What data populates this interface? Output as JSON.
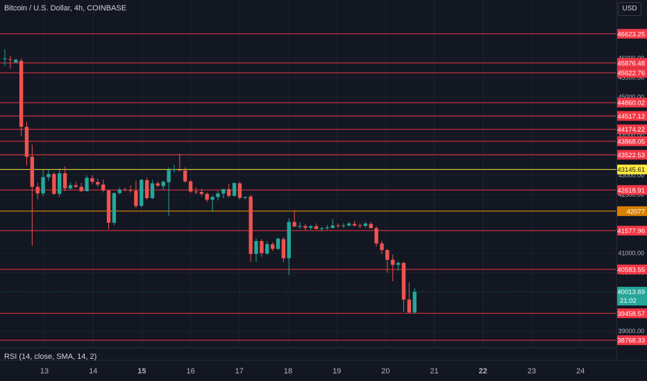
{
  "header": {
    "title": "Bitcoin / U.S. Dollar, 4h, COINBASE",
    "currency_button": "USD"
  },
  "indicator": {
    "label": "RSI (14, close, SMA, 14, 2)"
  },
  "colors": {
    "background": "#131722",
    "up": "#26a69a",
    "down": "#ef5350",
    "level_line": "#f23645",
    "yellow_line": "#ffeb3b",
    "orange_line": "#ff9800"
  },
  "chart_data": {
    "type": "candlestick",
    "timeframe": "4h",
    "x_ticks": [
      "13",
      "14",
      "15",
      "16",
      "17",
      "18",
      "19",
      "20",
      "21",
      "22",
      "23",
      "24"
    ],
    "y_ticks": [
      "46000.00",
      "45500.00",
      "45000.00",
      "44500.00",
      "44000.00",
      "43500.00",
      "43000.00",
      "42500.00",
      "41000.00",
      "40500.00",
      "39000.00"
    ],
    "ylim": [
      38700,
      46850
    ],
    "current_price": {
      "value": "40013.69",
      "countdown": "21:02"
    },
    "horizontal_levels": [
      {
        "value": "46623.25",
        "color": "red"
      },
      {
        "value": "45876.48",
        "color": "red"
      },
      {
        "value": "45622.76",
        "color": "red"
      },
      {
        "value": "44860.02",
        "color": "red"
      },
      {
        "value": "44517.12",
        "color": "red"
      },
      {
        "value": "44174.22",
        "color": "red"
      },
      {
        "value": "43868.05",
        "color": "red"
      },
      {
        "value": "43522.53",
        "color": "red"
      },
      {
        "value": "43145.61",
        "color": "yellow"
      },
      {
        "value": "42618.91",
        "color": "red"
      },
      {
        "value": "42077",
        "color": "orange"
      },
      {
        "value": "41577.96",
        "color": "red"
      },
      {
        "value": "40583.55",
        "color": "red"
      },
      {
        "value": "39458.57",
        "color": "red"
      },
      {
        "value": "38768.33",
        "color": "red"
      }
    ],
    "candles": [
      {
        "o": 45980,
        "h": 46230,
        "l": 45800,
        "c": 45990
      },
      {
        "o": 45970,
        "h": 46060,
        "l": 45730,
        "c": 45960
      },
      {
        "o": 45890,
        "h": 45970,
        "l": 45880,
        "c": 45960
      },
      {
        "o": 45930,
        "h": 45990,
        "l": 44010,
        "c": 44240
      },
      {
        "o": 44240,
        "h": 44370,
        "l": 43250,
        "c": 43470
      },
      {
        "o": 43470,
        "h": 43780,
        "l": 41190,
        "c": 42700
      },
      {
        "o": 42700,
        "h": 42800,
        "l": 42380,
        "c": 42530
      },
      {
        "o": 42530,
        "h": 43140,
        "l": 42460,
        "c": 42950
      },
      {
        "o": 42950,
        "h": 43150,
        "l": 42850,
        "c": 43030
      },
      {
        "o": 43030,
        "h": 43080,
        "l": 42500,
        "c": 42520
      },
      {
        "o": 42520,
        "h": 43180,
        "l": 42440,
        "c": 43050
      },
      {
        "o": 43050,
        "h": 43220,
        "l": 42590,
        "c": 42660
      },
      {
        "o": 42660,
        "h": 42810,
        "l": 42620,
        "c": 42740
      },
      {
        "o": 42740,
        "h": 42830,
        "l": 42670,
        "c": 42700
      },
      {
        "o": 42700,
        "h": 42800,
        "l": 42570,
        "c": 42590
      },
      {
        "o": 42590,
        "h": 42990,
        "l": 42580,
        "c": 42930
      },
      {
        "o": 42920,
        "h": 43000,
        "l": 42770,
        "c": 42830
      },
      {
        "o": 42820,
        "h": 42910,
        "l": 42700,
        "c": 42760
      },
      {
        "o": 42760,
        "h": 42890,
        "l": 42560,
        "c": 42610
      },
      {
        "o": 42610,
        "h": 42610,
        "l": 41610,
        "c": 41780
      },
      {
        "o": 41780,
        "h": 42550,
        "l": 41720,
        "c": 42540
      },
      {
        "o": 42540,
        "h": 42680,
        "l": 42510,
        "c": 42630
      },
      {
        "o": 42630,
        "h": 42680,
        "l": 42580,
        "c": 42620
      },
      {
        "o": 42620,
        "h": 42740,
        "l": 42550,
        "c": 42600
      },
      {
        "o": 42600,
        "h": 42860,
        "l": 42150,
        "c": 42210
      },
      {
        "o": 42210,
        "h": 42900,
        "l": 42180,
        "c": 42880
      },
      {
        "o": 42870,
        "h": 42940,
        "l": 42380,
        "c": 42410
      },
      {
        "o": 42410,
        "h": 42870,
        "l": 42390,
        "c": 42790
      },
      {
        "o": 42790,
        "h": 42840,
        "l": 42690,
        "c": 42730
      },
      {
        "o": 42720,
        "h": 42860,
        "l": 42630,
        "c": 42830
      },
      {
        "o": 42820,
        "h": 43200,
        "l": 41960,
        "c": 43130
      },
      {
        "o": 43130,
        "h": 43270,
        "l": 43060,
        "c": 43150
      },
      {
        "o": 43140,
        "h": 43550,
        "l": 43100,
        "c": 43120
      },
      {
        "o": 43120,
        "h": 43200,
        "l": 42800,
        "c": 42840
      },
      {
        "o": 42840,
        "h": 42880,
        "l": 42540,
        "c": 42580
      },
      {
        "o": 42580,
        "h": 42680,
        "l": 42510,
        "c": 42560
      },
      {
        "o": 42570,
        "h": 42650,
        "l": 42460,
        "c": 42520
      },
      {
        "o": 42520,
        "h": 42560,
        "l": 42310,
        "c": 42370
      },
      {
        "o": 42370,
        "h": 42480,
        "l": 42060,
        "c": 42440
      },
      {
        "o": 42440,
        "h": 42600,
        "l": 42350,
        "c": 42530
      },
      {
        "o": 42530,
        "h": 42650,
        "l": 42410,
        "c": 42640
      },
      {
        "o": 42640,
        "h": 42780,
        "l": 42430,
        "c": 42470
      },
      {
        "o": 42470,
        "h": 42770,
        "l": 42450,
        "c": 42800
      },
      {
        "o": 42790,
        "h": 42830,
        "l": 42380,
        "c": 42420
      },
      {
        "o": 42420,
        "h": 42460,
        "l": 42380,
        "c": 42440
      },
      {
        "o": 42450,
        "h": 42490,
        "l": 40780,
        "c": 40980
      },
      {
        "o": 40980,
        "h": 41380,
        "l": 40780,
        "c": 41310
      },
      {
        "o": 41310,
        "h": 41360,
        "l": 40910,
        "c": 41000
      },
      {
        "o": 40990,
        "h": 41310,
        "l": 40960,
        "c": 41230
      },
      {
        "o": 41230,
        "h": 41280,
        "l": 41060,
        "c": 41110
      },
      {
        "o": 41110,
        "h": 41400,
        "l": 41080,
        "c": 41370
      },
      {
        "o": 41360,
        "h": 41410,
        "l": 40770,
        "c": 40870
      },
      {
        "o": 40870,
        "h": 41890,
        "l": 40440,
        "c": 41800
      },
      {
        "o": 41800,
        "h": 42100,
        "l": 41700,
        "c": 41680
      },
      {
        "o": 41680,
        "h": 41800,
        "l": 41620,
        "c": 41700
      },
      {
        "o": 41690,
        "h": 41750,
        "l": 41590,
        "c": 41650
      },
      {
        "o": 41650,
        "h": 41720,
        "l": 41600,
        "c": 41690
      },
      {
        "o": 41690,
        "h": 41760,
        "l": 41610,
        "c": 41620
      },
      {
        "o": 41620,
        "h": 41670,
        "l": 41560,
        "c": 41640
      },
      {
        "o": 41640,
        "h": 41720,
        "l": 41600,
        "c": 41660
      },
      {
        "o": 41650,
        "h": 41870,
        "l": 41630,
        "c": 41710
      },
      {
        "o": 41710,
        "h": 41760,
        "l": 41650,
        "c": 41700
      },
      {
        "o": 41700,
        "h": 41770,
        "l": 41640,
        "c": 41710
      },
      {
        "o": 41710,
        "h": 41800,
        "l": 41680,
        "c": 41760
      },
      {
        "o": 41750,
        "h": 41830,
        "l": 41680,
        "c": 41710
      },
      {
        "o": 41710,
        "h": 41760,
        "l": 41640,
        "c": 41700
      },
      {
        "o": 41700,
        "h": 41800,
        "l": 41650,
        "c": 41760
      },
      {
        "o": 41750,
        "h": 41800,
        "l": 41650,
        "c": 41640
      },
      {
        "o": 41640,
        "h": 41690,
        "l": 41170,
        "c": 41250
      },
      {
        "o": 41250,
        "h": 41320,
        "l": 40980,
        "c": 41080
      },
      {
        "o": 41080,
        "h": 41110,
        "l": 40500,
        "c": 40830
      },
      {
        "o": 40830,
        "h": 40960,
        "l": 40280,
        "c": 40700
      },
      {
        "o": 40700,
        "h": 40790,
        "l": 40550,
        "c": 40750
      },
      {
        "o": 40750,
        "h": 40780,
        "l": 39500,
        "c": 39810
      },
      {
        "o": 39810,
        "h": 40250,
        "l": 39450,
        "c": 39480
      },
      {
        "o": 39480,
        "h": 40100,
        "l": 39450,
        "c": 40013.69
      }
    ]
  }
}
